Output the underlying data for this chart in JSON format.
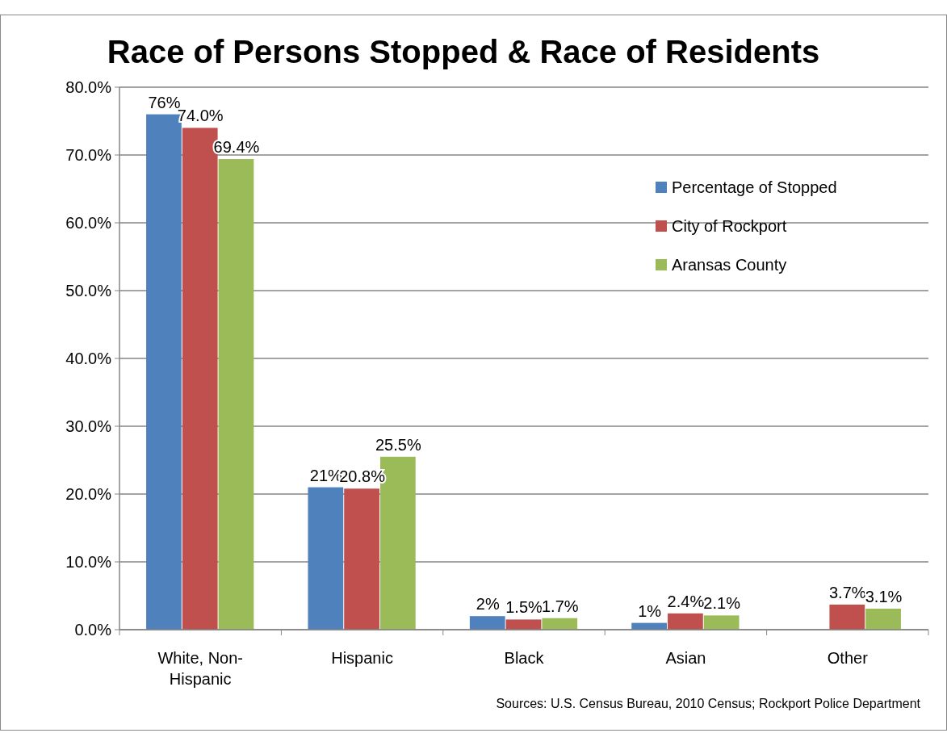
{
  "chart_data": {
    "type": "bar",
    "title": "Race of Persons Stopped & Race of Residents",
    "categories": [
      "White, Non-Hispanic",
      "Hispanic",
      "Black",
      "Asian",
      "Other"
    ],
    "series": [
      {
        "name": "Percentage of Stopped",
        "color": "#4f81bd",
        "values": [
          76,
          21,
          2,
          1,
          null
        ],
        "value_labels": [
          "76%",
          "21%",
          "2%",
          "1%",
          null
        ]
      },
      {
        "name": "City of Rockport",
        "color": "#c0504d",
        "values": [
          74,
          20.8,
          1.5,
          2.4,
          3.7
        ],
        "value_labels": [
          "74.0%",
          "20.8%",
          "1.5%",
          "2.4%",
          "3.7%"
        ]
      },
      {
        "name": "Aransas County",
        "color": "#9bbb59",
        "values": [
          69.4,
          25.5,
          1.7,
          2.1,
          3.1
        ],
        "value_labels": [
          "69.4%",
          "25.5%",
          "1.7%",
          "2.1%",
          "3.1%"
        ]
      }
    ],
    "ylim": [
      0,
      80
    ],
    "yticks": [
      {
        "value": 0,
        "label": "0.0%"
      },
      {
        "value": 10,
        "label": "10.0%"
      },
      {
        "value": 20,
        "label": "20.0%"
      },
      {
        "value": 30,
        "label": "30.0%"
      },
      {
        "value": 40,
        "label": "40.0%"
      },
      {
        "value": 50,
        "label": "50.0%"
      },
      {
        "value": 60,
        "label": "60.0%"
      },
      {
        "value": 70,
        "label": "70.0%"
      },
      {
        "value": 80,
        "label": "80.0%"
      }
    ],
    "grid": "y",
    "legend": "right",
    "annotations": [
      "Sources: U.S. Census Bureau, 2010 Census; Rockport Police Department"
    ]
  }
}
